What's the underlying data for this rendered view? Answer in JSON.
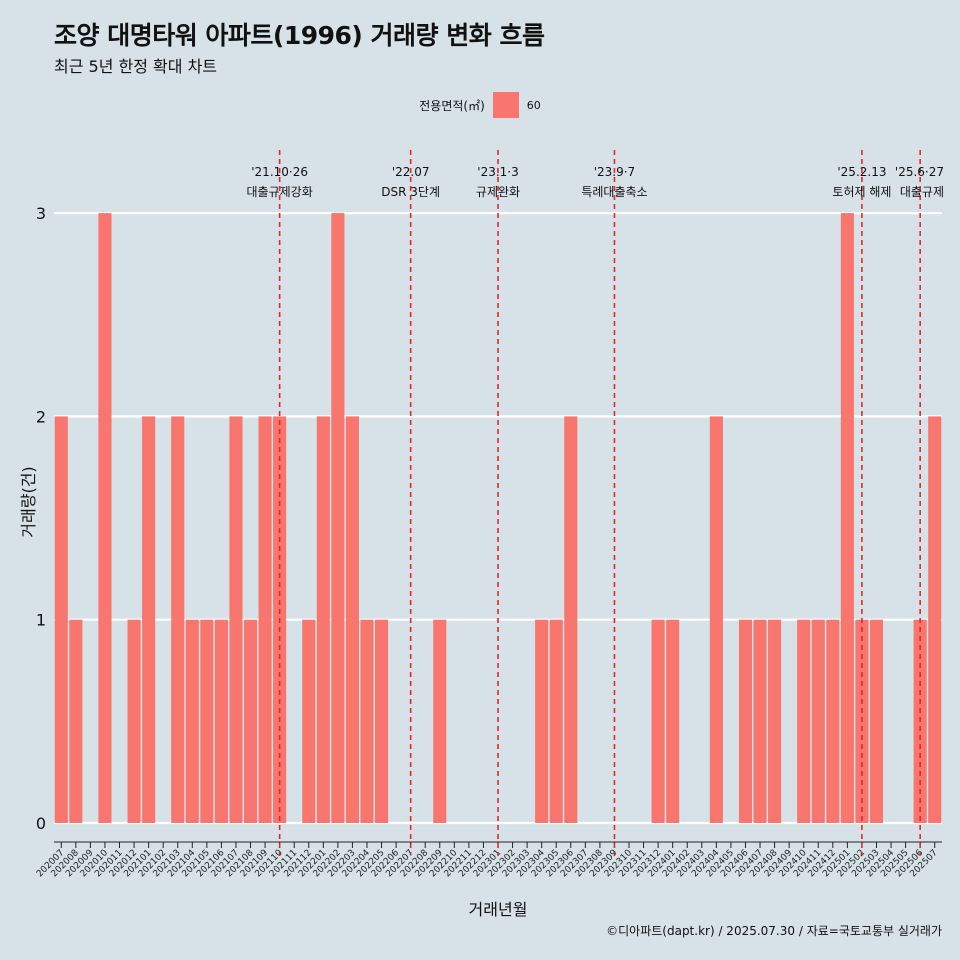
{
  "title": "조양 대명타워 아파트(1996) 거래량 변화 흐름",
  "subtitle": "최근 5년 한정 확대 차트",
  "legend": {
    "title": "전용면적(㎡)",
    "item": "60",
    "color": "#f8766d"
  },
  "caption": "©디아파트(dapt.kr) / 2025.07.30 / 자료=국토교통부 실거래가",
  "chart_data": {
    "type": "bar",
    "xlabel": "거래년월",
    "ylabel": "거래량(건)",
    "ylim": [
      0,
      3
    ],
    "yticks": [
      0,
      1,
      2,
      3
    ],
    "grid": true,
    "legend_position": "top",
    "categories": [
      "202007",
      "202008",
      "202009",
      "202010",
      "202011",
      "202012",
      "202101",
      "202102",
      "202103",
      "202104",
      "202105",
      "202106",
      "202107",
      "202108",
      "202109",
      "202110",
      "202111",
      "202112",
      "202201",
      "202202",
      "202203",
      "202204",
      "202205",
      "202206",
      "202207",
      "202208",
      "202209",
      "202210",
      "202211",
      "202212",
      "202301",
      "202302",
      "202303",
      "202304",
      "202305",
      "202306",
      "202307",
      "202308",
      "202309",
      "202310",
      "202311",
      "202312",
      "202401",
      "202402",
      "202403",
      "202404",
      "202405",
      "202406",
      "202407",
      "202408",
      "202409",
      "202410",
      "202411",
      "202412",
      "202501",
      "202502",
      "202503",
      "202504",
      "202505",
      "202506",
      "202507"
    ],
    "series": [
      {
        "name": "60",
        "color": "#f8766d",
        "values": [
          2,
          1,
          0,
          3,
          0,
          1,
          2,
          0,
          2,
          1,
          1,
          1,
          2,
          1,
          2,
          2,
          0,
          1,
          2,
          3,
          2,
          1,
          1,
          0,
          0,
          0,
          1,
          0,
          0,
          0,
          0,
          0,
          0,
          1,
          1,
          2,
          0,
          0,
          0,
          0,
          0,
          1,
          1,
          0,
          0,
          2,
          0,
          1,
          1,
          1,
          0,
          1,
          1,
          1,
          3,
          1,
          1,
          0,
          0,
          1,
          2
        ]
      }
    ],
    "annotations": [
      {
        "category": "202110",
        "date": "'21.10·26",
        "label": "대출규제강화"
      },
      {
        "category": "202207",
        "date": "'22.07",
        "label": "DSR 3단계"
      },
      {
        "category": "202301",
        "date": "'23.1·3",
        "label": "규제완화"
      },
      {
        "category": "202309",
        "date": "'23.9·7",
        "label": "특례대출축소"
      },
      {
        "category": "202502",
        "date": "'25.2.13",
        "label": "토허제 해제"
      },
      {
        "category": "202506",
        "date": "'25.6·27",
        "label": "대출규제"
      }
    ]
  }
}
